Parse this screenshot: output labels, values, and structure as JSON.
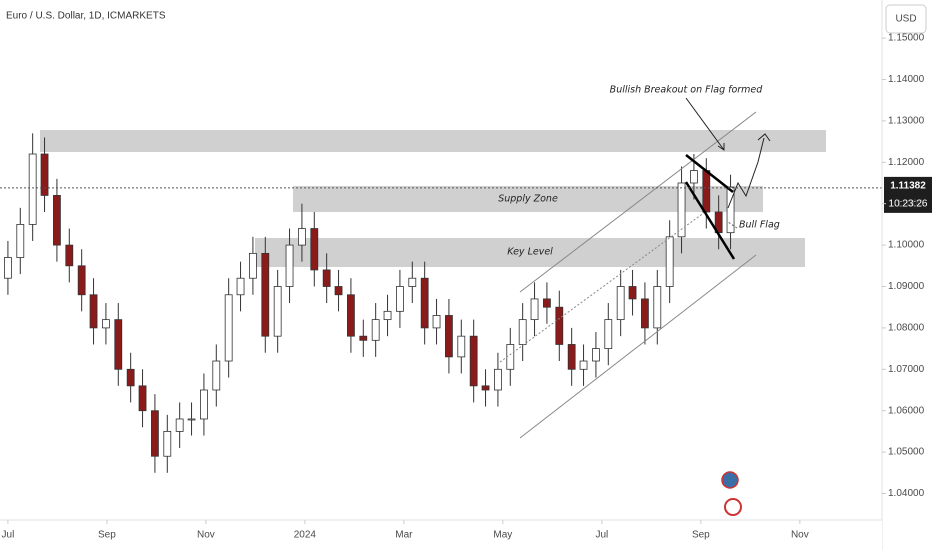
{
  "header": {
    "symbol": "Euro / U.S. Dollar, 1D, ICMARKETS",
    "currency": "USD"
  },
  "price_tag": {
    "price": 1.11382,
    "label": "1.11382",
    "countdown": "10:23:26"
  },
  "annotations": {
    "supply": "Supply Zone",
    "key": "Key Level",
    "flag": "Bull Flag",
    "breakout": "Bullish Breakout on Flag formed"
  },
  "chart_data": {
    "type": "candlestick",
    "x": [
      0,
      0.25,
      0.5,
      0.74,
      0.99,
      1.24,
      1.49,
      1.73,
      1.98,
      2.23,
      2.48,
      2.72,
      2.97,
      3.22,
      3.47,
      3.71,
      3.96,
      4.21,
      4.46,
      4.7,
      4.95,
      5.2,
      5.45,
      5.69,
      5.94,
      6.19,
      6.44,
      6.68,
      6.93,
      7.18,
      7.43,
      7.67,
      7.92,
      8.17,
      8.42,
      8.66,
      8.91,
      9.16,
      9.41,
      9.65,
      9.9,
      10.15,
      10.4,
      10.64,
      10.89,
      11.14,
      11.39,
      11.63,
      11.88,
      12.13,
      12.38,
      12.62,
      12.87,
      13.12,
      13.37,
      13.61,
      13.86,
      14.11,
      14.36,
      14.6
    ],
    "open": [
      1.092,
      1.097,
      1.105,
      1.122,
      1.112,
      1.1,
      1.095,
      1.088,
      1.08,
      1.082,
      1.07,
      1.066,
      1.06,
      1.049,
      1.055,
      1.058,
      1.058,
      1.065,
      1.072,
      1.088,
      1.092,
      1.098,
      1.078,
      1.09,
      1.1,
      1.104,
      1.094,
      1.09,
      1.088,
      1.078,
      1.077,
      1.082,
      1.084,
      1.09,
      1.092,
      1.08,
      1.083,
      1.073,
      1.078,
      1.066,
      1.065,
      1.07,
      1.076,
      1.082,
      1.087,
      1.085,
      1.076,
      1.07,
      1.072,
      1.075,
      1.082,
      1.09,
      1.087,
      1.08,
      1.09,
      1.102,
      1.115,
      1.118,
      1.108,
      1.103
    ],
    "high": [
      1.101,
      1.109,
      1.127,
      1.126,
      1.116,
      1.104,
      1.099,
      1.092,
      1.086,
      1.086,
      1.074,
      1.07,
      1.064,
      1.059,
      1.062,
      1.062,
      1.069,
      1.076,
      1.092,
      1.096,
      1.102,
      1.102,
      1.094,
      1.104,
      1.11,
      1.108,
      1.098,
      1.094,
      1.092,
      1.082,
      1.086,
      1.088,
      1.094,
      1.096,
      1.096,
      1.087,
      1.087,
      1.082,
      1.082,
      1.07,
      1.074,
      1.08,
      1.086,
      1.091,
      1.091,
      1.089,
      1.08,
      1.076,
      1.079,
      1.086,
      1.094,
      1.094,
      1.091,
      1.094,
      1.106,
      1.119,
      1.122,
      1.121,
      1.112,
      1.117
    ],
    "low": [
      1.088,
      1.093,
      1.101,
      1.108,
      1.096,
      1.091,
      1.084,
      1.076,
      1.076,
      1.066,
      1.062,
      1.056,
      1.045,
      1.045,
      1.051,
      1.054,
      1.054,
      1.061,
      1.068,
      1.084,
      1.088,
      1.074,
      1.074,
      1.086,
      1.096,
      1.09,
      1.086,
      1.084,
      1.074,
      1.073,
      1.073,
      1.078,
      1.08,
      1.086,
      1.076,
      1.076,
      1.069,
      1.069,
      1.062,
      1.061,
      1.061,
      1.066,
      1.072,
      1.078,
      1.081,
      1.072,
      1.066,
      1.066,
      1.068,
      1.071,
      1.078,
      1.083,
      1.076,
      1.076,
      1.086,
      1.098,
      1.111,
      1.104,
      1.099,
      1.099
    ],
    "close": [
      1.097,
      1.105,
      1.122,
      1.112,
      1.1,
      1.095,
      1.088,
      1.08,
      1.082,
      1.07,
      1.066,
      1.06,
      1.049,
      1.055,
      1.058,
      1.058,
      1.065,
      1.072,
      1.088,
      1.092,
      1.098,
      1.078,
      1.09,
      1.1,
      1.104,
      1.094,
      1.09,
      1.088,
      1.078,
      1.077,
      1.082,
      1.084,
      1.09,
      1.092,
      1.08,
      1.083,
      1.073,
      1.078,
      1.066,
      1.065,
      1.07,
      1.076,
      1.082,
      1.087,
      1.085,
      1.076,
      1.07,
      1.072,
      1.075,
      1.082,
      1.09,
      1.087,
      1.08,
      1.09,
      1.102,
      1.115,
      1.118,
      1.108,
      1.103,
      1.114
    ],
    "up_color": "#ffffff",
    "down_color": "#8b1a1a",
    "xlim": [
      -0.16,
      17.66
    ],
    "xticks": [
      {
        "value": 0,
        "label": "Jul"
      },
      {
        "value": 2,
        "label": "Sep"
      },
      {
        "value": 4,
        "label": "Nov"
      },
      {
        "value": 6,
        "label": "2024"
      },
      {
        "value": 8,
        "label": "Mar"
      },
      {
        "value": 10,
        "label": "May"
      },
      {
        "value": 12,
        "label": "Jul"
      },
      {
        "value": 14,
        "label": "Sep"
      },
      {
        "value": 16,
        "label": "Nov"
      }
    ],
    "ylim": [
      1.0336,
      1.1592
    ],
    "yticks": [
      {
        "value": 1.04,
        "label": "1.04000"
      },
      {
        "value": 1.05,
        "label": "1.05000"
      },
      {
        "value": 1.06,
        "label": "1.06000"
      },
      {
        "value": 1.07,
        "label": "1.07000"
      },
      {
        "value": 1.08,
        "label": "1.08000"
      },
      {
        "value": 1.09,
        "label": "1.09000"
      },
      {
        "value": 1.1,
        "label": "1.10000"
      },
      {
        "value": 1.11,
        "label": "1.11000"
      },
      {
        "value": 1.12,
        "label": "1.12000"
      },
      {
        "value": 1.13,
        "label": "1.13000"
      },
      {
        "value": 1.14,
        "label": "1.14000"
      },
      {
        "value": 1.15,
        "label": "1.15000"
      }
    ]
  }
}
